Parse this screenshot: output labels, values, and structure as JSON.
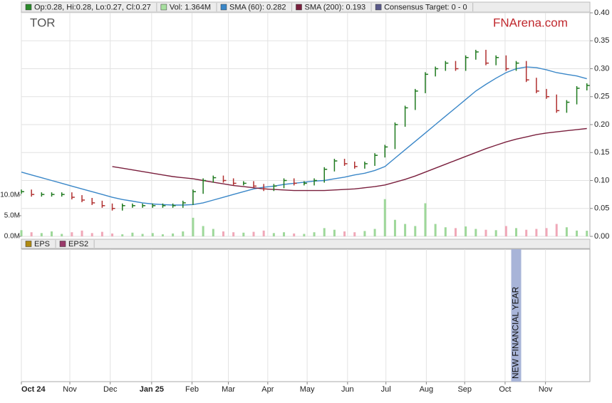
{
  "chart_data": {
    "type": "stock",
    "title": "TOR",
    "watermark": "FNArena.com",
    "legend": [
      "Op:0.28, Hi:0.28, Lo:0.27, Cl:0.27",
      "Vol: 1.364M",
      "SMA (60): 0.282",
      "SMA (200): 0.193",
      "Consensus Target: 0 - 0"
    ],
    "legend_colors": [
      "#2a8a2a",
      "#a8e0a0",
      "#3a87c8",
      "#7a1f3d",
      "#5a5a8a"
    ],
    "x": [
      0,
      1,
      2,
      3,
      4,
      5,
      6,
      7,
      8,
      9,
      10,
      11,
      12,
      13,
      14,
      15,
      16,
      17,
      18,
      19,
      20,
      21,
      22,
      23,
      24,
      25,
      26,
      27,
      28,
      29,
      30,
      31,
      32,
      33,
      34,
      35,
      36,
      37,
      38,
      39,
      40,
      41,
      42,
      43,
      44,
      45,
      46,
      47,
      48,
      49,
      50,
      51,
      52,
      53,
      54,
      55,
      56
    ],
    "xlim": [
      0,
      56.3
    ],
    "xticks": [
      {
        "value": 0,
        "label": "Oct 24"
      },
      {
        "value": 4.8,
        "label": "Nov"
      },
      {
        "value": 8.8,
        "label": "Dec"
      },
      {
        "value": 12.9,
        "label": "Jan 25"
      },
      {
        "value": 16.9,
        "label": "Feb"
      },
      {
        "value": 20.5,
        "label": "Mar"
      },
      {
        "value": 24.4,
        "label": "Apr"
      },
      {
        "value": 28.3,
        "label": "May"
      },
      {
        "value": 32.3,
        "label": "Jun"
      },
      {
        "value": 36.1,
        "label": "Jul"
      },
      {
        "value": 40.1,
        "label": "Aug"
      },
      {
        "value": 43.9,
        "label": "Sep"
      },
      {
        "value": 47.9,
        "label": "Oct"
      },
      {
        "value": 51.9,
        "label": "Nov"
      }
    ],
    "ylim": [
      0,
      0.4
    ],
    "yticks": [
      {
        "value": 0,
        "label": "0.00"
      },
      {
        "value": 0.05,
        "label": "0.05"
      },
      {
        "value": 0.1,
        "label": "0.10"
      },
      {
        "value": 0.15,
        "label": "0.15"
      },
      {
        "value": 0.2,
        "label": "0.20"
      },
      {
        "value": 0.25,
        "label": "0.25"
      },
      {
        "value": 0.3,
        "label": "0.30"
      },
      {
        "value": 0.35,
        "label": "0.35"
      },
      {
        "value": 0.4,
        "label": "0.40"
      }
    ],
    "y2lim": [
      0,
      54
    ],
    "y2ticks": [
      {
        "value": 0,
        "label": "0.0M"
      },
      {
        "value": 5,
        "label": "5.0M"
      },
      {
        "value": 10,
        "label": "10.0M"
      }
    ],
    "grid": true,
    "series": [
      {
        "name": "Op:0.28, Hi:0.28, Lo:0.27, Cl:0.27",
        "color": "#1f7a1f",
        "down_color": "#b03030",
        "values": [
          0.08,
          0.075,
          0.075,
          0.075,
          0.075,
          0.07,
          0.065,
          0.06,
          0.055,
          0.05,
          0.055,
          0.055,
          0.055,
          0.055,
          0.055,
          0.055,
          0.06,
          0.08,
          0.1,
          0.105,
          0.1,
          0.095,
          0.095,
          0.09,
          0.085,
          0.09,
          0.1,
          0.095,
          0.095,
          0.1,
          0.12,
          0.135,
          0.13,
          0.125,
          0.13,
          0.145,
          0.16,
          0.2,
          0.23,
          0.26,
          0.29,
          0.3,
          0.31,
          0.3,
          0.32,
          0.33,
          0.31,
          0.32,
          0.3,
          0.31,
          0.28,
          0.26,
          0.25,
          0.225,
          0.24,
          0.265,
          0.27
        ]
      },
      {
        "name": "Vol: 1.364M",
        "color": "#9ed89a",
        "down_color": "#f0a8b8",
        "axis": "y2",
        "values": [
          1.5,
          1,
          0.8,
          1.2,
          0.6,
          1,
          1.4,
          0.8,
          1.1,
          0.7,
          0.5,
          0.9,
          0.6,
          0.8,
          0.5,
          0.7,
          1.2,
          4.5,
          2.5,
          1.8,
          1.2,
          1,
          0.9,
          1.1,
          1.4,
          0.8,
          1,
          0.7,
          0.6,
          1,
          2,
          1.6,
          1.2,
          1,
          1.3,
          1.8,
          9,
          4,
          3,
          2.5,
          8,
          3,
          2.2,
          2,
          2.4,
          1.8,
          1.6,
          1.5,
          2.5,
          2,
          1.6,
          1.8,
          2,
          3,
          2.2,
          1.4,
          1.364
        ]
      },
      {
        "name": "SMA (60): 0.282",
        "color": "#3a87c8",
        "values": [
          0.115,
          0.11,
          0.105,
          0.1,
          0.095,
          0.09,
          0.085,
          0.08,
          0.075,
          0.07,
          0.066,
          0.063,
          0.06,
          0.058,
          0.057,
          0.056,
          0.056,
          0.057,
          0.06,
          0.065,
          0.07,
          0.075,
          0.08,
          0.085,
          0.088,
          0.09,
          0.093,
          0.095,
          0.097,
          0.099,
          0.1,
          0.103,
          0.106,
          0.11,
          0.113,
          0.118,
          0.125,
          0.14,
          0.155,
          0.17,
          0.185,
          0.2,
          0.215,
          0.23,
          0.245,
          0.26,
          0.272,
          0.283,
          0.293,
          0.3,
          0.303,
          0.302,
          0.298,
          0.293,
          0.29,
          0.287,
          0.282
        ]
      },
      {
        "name": "SMA (200): 0.193",
        "color": "#7a1f3d",
        "values": [
          null,
          null,
          null,
          null,
          null,
          null,
          null,
          null,
          null,
          0.125,
          0.122,
          0.119,
          0.116,
          0.113,
          0.11,
          0.107,
          0.105,
          0.103,
          0.1,
          0.097,
          0.094,
          0.091,
          0.089,
          0.087,
          0.085,
          0.084,
          0.083,
          0.082,
          0.082,
          0.082,
          0.082,
          0.083,
          0.084,
          0.085,
          0.087,
          0.089,
          0.092,
          0.097,
          0.102,
          0.108,
          0.115,
          0.122,
          0.129,
          0.136,
          0.143,
          0.15,
          0.157,
          0.163,
          0.169,
          0.174,
          0.178,
          0.182,
          0.185,
          0.187,
          0.189,
          0.191,
          0.193
        ]
      }
    ],
    "lower_panel": {
      "legend": [
        "EPS",
        "EPS2"
      ],
      "legend_colors": [
        "#b08a10",
        "#9a3a6a"
      ]
    },
    "annotation": {
      "text": "NEW FINANCIAL YEAR",
      "x": 49
    }
  }
}
